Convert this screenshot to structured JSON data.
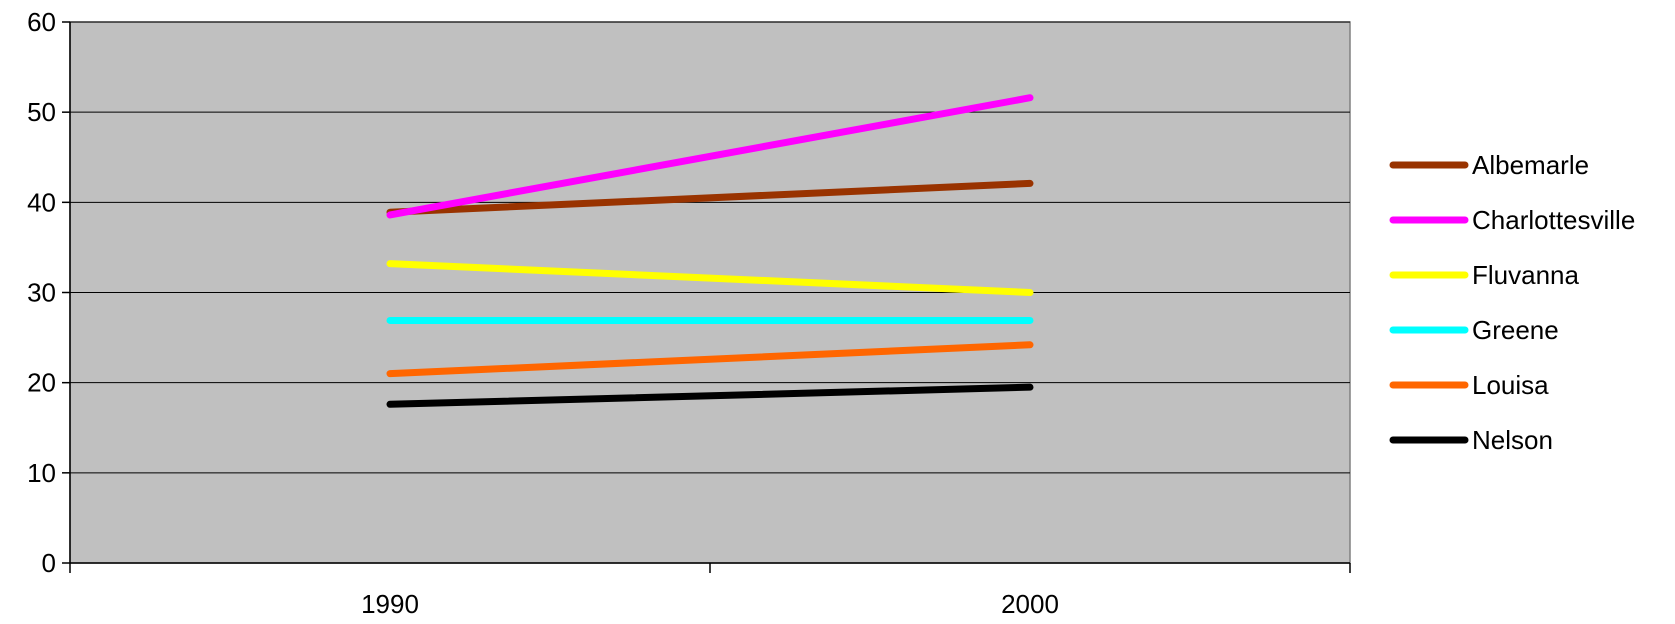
{
  "chart_data": {
    "type": "line",
    "categories": [
      "1990",
      "2000"
    ],
    "ylim": [
      0,
      60
    ],
    "yticks": [
      0,
      10,
      20,
      30,
      40,
      50,
      60
    ],
    "ytick_labels": [
      "0",
      "10",
      "20",
      "30",
      "40",
      "50",
      "60"
    ],
    "grid": true,
    "plot_background": "#c0c0c0",
    "legend_position": "right",
    "series": [
      {
        "name": "Albemarle",
        "values": [
          38.9,
          42.1
        ],
        "color": "#993300"
      },
      {
        "name": "Charlottesville",
        "values": [
          38.6,
          51.6
        ],
        "color": "#ff00ff"
      },
      {
        "name": "Fluvanna",
        "values": [
          33.2,
          30.0
        ],
        "color": "#ffff00"
      },
      {
        "name": "Greene",
        "values": [
          26.9,
          26.9
        ],
        "color": "#00ffff"
      },
      {
        "name": "Louisa",
        "values": [
          21.0,
          24.2
        ],
        "color": "#ff6600"
      },
      {
        "name": "Nelson",
        "values": [
          17.6,
          19.5
        ],
        "color": "#000000"
      }
    ]
  }
}
